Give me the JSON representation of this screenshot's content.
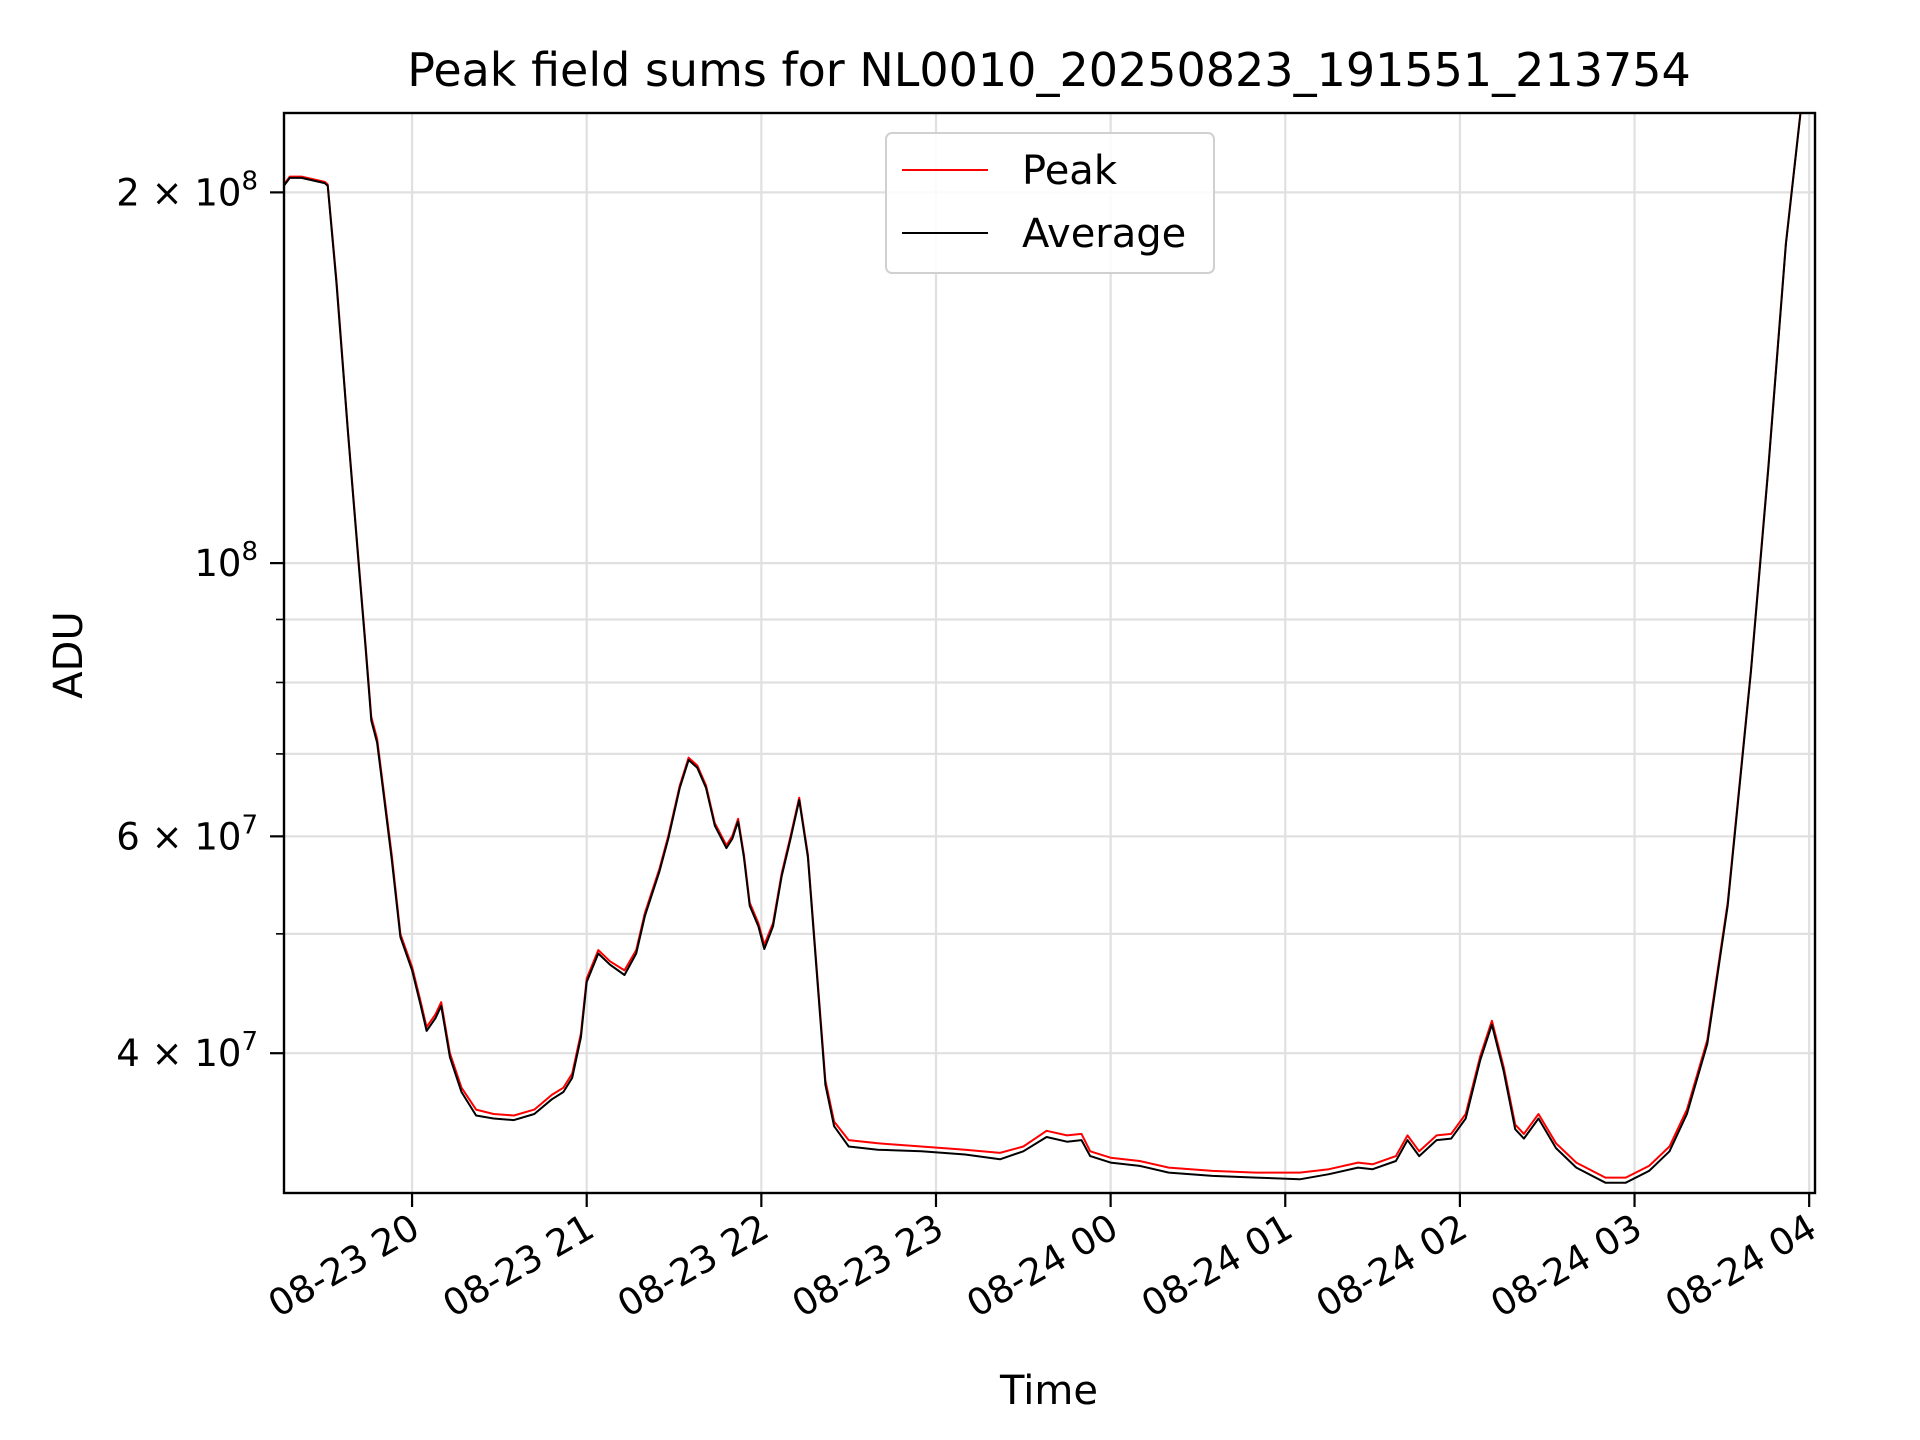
{
  "chart_data": {
    "type": "line",
    "title": "Peak field sums for NL0010_20250823_191551_213754",
    "xlabel": "Time",
    "ylabel": "ADU",
    "y_scale": "log",
    "grid": true,
    "legend_position": "upper-center",
    "x_range": [
      "2025-08-23 19:16",
      "2025-08-24 04:02"
    ],
    "ylim": [
      30800000,
      232000000
    ],
    "x_ticks": [
      "08-23 20",
      "08-23 21",
      "08-23 22",
      "08-23 23",
      "08-24 00",
      "08-24 01",
      "08-24 02",
      "08-24 03",
      "08-24 04"
    ],
    "y_ticks": [
      {
        "value": 40000000,
        "base": "4 × 10",
        "exp": "7"
      },
      {
        "value": 60000000,
        "base": "6 × 10",
        "exp": "7"
      },
      {
        "value": 100000000,
        "base": "10",
        "exp": "8"
      },
      {
        "value": 200000000,
        "base": "2 × 10",
        "exp": "8"
      }
    ],
    "y_minor_ticks": [
      30000000,
      50000000,
      70000000,
      80000000,
      90000000,
      300000000
    ],
    "series": [
      {
        "name": "Peak",
        "color": "#ff0000",
        "points": [
          [
            "08-23 19:16",
            203000000
          ],
          [
            "08-23 19:18",
            206000000
          ],
          [
            "08-23 19:22",
            206000000
          ],
          [
            "08-23 19:30",
            204000000
          ],
          [
            "08-23 19:31",
            203000000
          ],
          [
            "08-23 19:34",
            170000000
          ],
          [
            "08-23 19:38",
            128000000
          ],
          [
            "08-23 19:42",
            98000000
          ],
          [
            "08-23 19:44",
            86000000
          ],
          [
            "08-23 19:46",
            75000000
          ],
          [
            "08-23 19:48",
            72000000
          ],
          [
            "08-23 19:50",
            66000000
          ],
          [
            "08-23 19:53",
            58000000
          ],
          [
            "08-23 19:56",
            50000000
          ],
          [
            "08-23 20:00",
            47000000
          ],
          [
            "08-23 20:03",
            44000000
          ],
          [
            "08-23 20:05",
            42000000
          ],
          [
            "08-23 20:08",
            43000000
          ],
          [
            "08-23 20:10",
            44000000
          ],
          [
            "08-23 20:13",
            40000000
          ],
          [
            "08-23 20:17",
            37500000
          ],
          [
            "08-23 20:22",
            36000000
          ],
          [
            "08-23 20:28",
            35700000
          ],
          [
            "08-23 20:35",
            35600000
          ],
          [
            "08-23 20:42",
            36000000
          ],
          [
            "08-23 20:48",
            37000000
          ],
          [
            "08-23 20:52",
            37500000
          ],
          [
            "08-23 20:55",
            38500000
          ],
          [
            "08-23 20:58",
            41500000
          ],
          [
            "08-23 21:00",
            46000000
          ],
          [
            "08-23 21:04",
            48500000
          ],
          [
            "08-23 21:08",
            47500000
          ],
          [
            "08-23 21:13",
            46700000
          ],
          [
            "08-23 21:17",
            48500000
          ],
          [
            "08-23 21:20",
            52000000
          ],
          [
            "08-23 21:25",
            56500000
          ],
          [
            "08-23 21:28",
            60000000
          ],
          [
            "08-23 21:32",
            66000000
          ],
          [
            "08-23 21:35",
            69500000
          ],
          [
            "08-23 21:38",
            68500000
          ],
          [
            "08-23 21:41",
            66000000
          ],
          [
            "08-23 21:44",
            61500000
          ],
          [
            "08-23 21:48",
            59000000
          ],
          [
            "08-23 21:50",
            60000000
          ],
          [
            "08-23 21:52",
            62000000
          ],
          [
            "08-23 21:54",
            58000000
          ],
          [
            "08-23 21:56",
            53000000
          ],
          [
            "08-23 21:59",
            51000000
          ],
          [
            "08-23 22:01",
            49000000
          ],
          [
            "08-23 22:04",
            51000000
          ],
          [
            "08-23 22:07",
            56000000
          ],
          [
            "08-23 22:10",
            60000000
          ],
          [
            "08-23 22:13",
            64500000
          ],
          [
            "08-23 22:16",
            58000000
          ],
          [
            "08-23 22:19",
            47000000
          ],
          [
            "08-23 22:22",
            38000000
          ],
          [
            "08-23 22:25",
            35200000
          ],
          [
            "08-23 22:30",
            34000000
          ],
          [
            "08-23 22:40",
            33800000
          ],
          [
            "08-23 22:55",
            33600000
          ],
          [
            "08-23 23:10",
            33400000
          ],
          [
            "08-23 23:22",
            33200000
          ],
          [
            "08-23 23:30",
            33600000
          ],
          [
            "08-23 23:38",
            34600000
          ],
          [
            "08-23 23:45",
            34300000
          ],
          [
            "08-23 23:50",
            34400000
          ],
          [
            "08-23 23:53",
            33300000
          ],
          [
            "08-24 00:00",
            32900000
          ],
          [
            "08-24 00:10",
            32700000
          ],
          [
            "08-24 00:20",
            32300000
          ],
          [
            "08-24 00:35",
            32100000
          ],
          [
            "08-24 00:50",
            32000000
          ],
          [
            "08-24 01:05",
            32000000
          ],
          [
            "08-24 01:15",
            32200000
          ],
          [
            "08-24 01:25",
            32600000
          ],
          [
            "08-24 01:30",
            32500000
          ],
          [
            "08-24 01:38",
            33000000
          ],
          [
            "08-24 01:42",
            34300000
          ],
          [
            "08-24 01:46",
            33300000
          ],
          [
            "08-24 01:52",
            34300000
          ],
          [
            "08-24 01:57",
            34400000
          ],
          [
            "08-24 02:02",
            35700000
          ],
          [
            "08-24 02:07",
            39800000
          ],
          [
            "08-24 02:11",
            42500000
          ],
          [
            "08-24 02:15",
            39000000
          ],
          [
            "08-24 02:19",
            35000000
          ],
          [
            "08-24 02:22",
            34400000
          ],
          [
            "08-24 02:27",
            35700000
          ],
          [
            "08-24 02:33",
            33800000
          ],
          [
            "08-24 02:40",
            32600000
          ],
          [
            "08-24 02:50",
            31700000
          ],
          [
            "08-24 02:57",
            31700000
          ],
          [
            "08-24 03:05",
            32400000
          ],
          [
            "08-24 03:12",
            33600000
          ],
          [
            "08-24 03:18",
            36000000
          ],
          [
            "08-24 03:25",
            41000000
          ],
          [
            "08-24 03:32",
            53000000
          ],
          [
            "08-24 03:40",
            82000000
          ],
          [
            "08-24 03:46",
            120000000
          ],
          [
            "08-24 03:52",
            182000000
          ],
          [
            "08-24 03:57",
            232000000
          ]
        ]
      },
      {
        "name": "Average",
        "color": "#000000",
        "points": [
          [
            "08-23 19:16",
            202500000
          ],
          [
            "08-23 19:18",
            205500000
          ],
          [
            "08-23 19:22",
            205500000
          ],
          [
            "08-23 19:30",
            203500000
          ],
          [
            "08-23 19:31",
            202500000
          ],
          [
            "08-23 19:34",
            169000000
          ],
          [
            "08-23 19:38",
            127500000
          ],
          [
            "08-23 19:42",
            97500000
          ],
          [
            "08-23 19:44",
            85500000
          ],
          [
            "08-23 19:46",
            74500000
          ],
          [
            "08-23 19:48",
            71500000
          ],
          [
            "08-23 19:50",
            65500000
          ],
          [
            "08-23 19:53",
            57500000
          ],
          [
            "08-23 19:56",
            49700000
          ],
          [
            "08-23 20:00",
            46700000
          ],
          [
            "08-23 20:03",
            43700000
          ],
          [
            "08-23 20:05",
            41700000
          ],
          [
            "08-23 20:08",
            42700000
          ],
          [
            "08-23 20:10",
            43700000
          ],
          [
            "08-23 20:13",
            39700000
          ],
          [
            "08-23 20:17",
            37200000
          ],
          [
            "08-23 20:22",
            35600000
          ],
          [
            "08-23 20:28",
            35400000
          ],
          [
            "08-23 20:35",
            35300000
          ],
          [
            "08-23 20:42",
            35700000
          ],
          [
            "08-23 20:48",
            36700000
          ],
          [
            "08-23 20:52",
            37200000
          ],
          [
            "08-23 20:55",
            38200000
          ],
          [
            "08-23 20:58",
            41200000
          ],
          [
            "08-23 21:00",
            45700000
          ],
          [
            "08-23 21:04",
            48200000
          ],
          [
            "08-23 21:08",
            47200000
          ],
          [
            "08-23 21:13",
            46300000
          ],
          [
            "08-23 21:17",
            48200000
          ],
          [
            "08-23 21:20",
            51700000
          ],
          [
            "08-23 21:25",
            56200000
          ],
          [
            "08-23 21:28",
            59700000
          ],
          [
            "08-23 21:32",
            65700000
          ],
          [
            "08-23 21:35",
            69200000
          ],
          [
            "08-23 21:38",
            68200000
          ],
          [
            "08-23 21:41",
            65700000
          ],
          [
            "08-23 21:44",
            61200000
          ],
          [
            "08-23 21:48",
            58700000
          ],
          [
            "08-23 21:50",
            59700000
          ],
          [
            "08-23 21:52",
            61700000
          ],
          [
            "08-23 21:54",
            57700000
          ],
          [
            "08-23 21:56",
            52700000
          ],
          [
            "08-23 21:59",
            50700000
          ],
          [
            "08-23 22:01",
            48600000
          ],
          [
            "08-23 22:04",
            50700000
          ],
          [
            "08-23 22:07",
            55700000
          ],
          [
            "08-23 22:10",
            59700000
          ],
          [
            "08-23 22:13",
            64200000
          ],
          [
            "08-23 22:16",
            57700000
          ],
          [
            "08-23 22:19",
            46700000
          ],
          [
            "08-23 22:22",
            37700000
          ],
          [
            "08-23 22:25",
            34900000
          ],
          [
            "08-23 22:30",
            33600000
          ],
          [
            "08-23 22:40",
            33400000
          ],
          [
            "08-23 22:55",
            33300000
          ],
          [
            "08-23 23:10",
            33100000
          ],
          [
            "08-23 23:22",
            32800000
          ],
          [
            "08-23 23:30",
            33300000
          ],
          [
            "08-23 23:38",
            34200000
          ],
          [
            "08-23 23:45",
            33900000
          ],
          [
            "08-23 23:50",
            34000000
          ],
          [
            "08-23 23:53",
            33000000
          ],
          [
            "08-24 00:00",
            32600000
          ],
          [
            "08-24 00:10",
            32400000
          ],
          [
            "08-24 00:20",
            32000000
          ],
          [
            "08-24 00:35",
            31800000
          ],
          [
            "08-24 00:50",
            31700000
          ],
          [
            "08-24 01:05",
            31600000
          ],
          [
            "08-24 01:15",
            31900000
          ],
          [
            "08-24 01:25",
            32300000
          ],
          [
            "08-24 01:30",
            32200000
          ],
          [
            "08-24 01:38",
            32700000
          ],
          [
            "08-24 01:42",
            34000000
          ],
          [
            "08-24 01:46",
            33000000
          ],
          [
            "08-24 01:52",
            34000000
          ],
          [
            "08-24 01:57",
            34100000
          ],
          [
            "08-24 02:02",
            35400000
          ],
          [
            "08-24 02:07",
            39500000
          ],
          [
            "08-24 02:11",
            42200000
          ],
          [
            "08-24 02:15",
            38700000
          ],
          [
            "08-24 02:19",
            34700000
          ],
          [
            "08-24 02:22",
            34100000
          ],
          [
            "08-24 02:27",
            35400000
          ],
          [
            "08-24 02:33",
            33500000
          ],
          [
            "08-24 02:40",
            32300000
          ],
          [
            "08-24 02:50",
            31400000
          ],
          [
            "08-24 02:57",
            31400000
          ],
          [
            "08-24 03:05",
            32100000
          ],
          [
            "08-24 03:12",
            33300000
          ],
          [
            "08-24 03:18",
            35700000
          ],
          [
            "08-24 03:25",
            40700000
          ],
          [
            "08-24 03:32",
            52700000
          ],
          [
            "08-24 03:40",
            81700000
          ],
          [
            "08-24 03:46",
            119500000
          ],
          [
            "08-24 03:52",
            181500000
          ],
          [
            "08-24 03:57",
            231500000
          ]
        ]
      }
    ]
  }
}
